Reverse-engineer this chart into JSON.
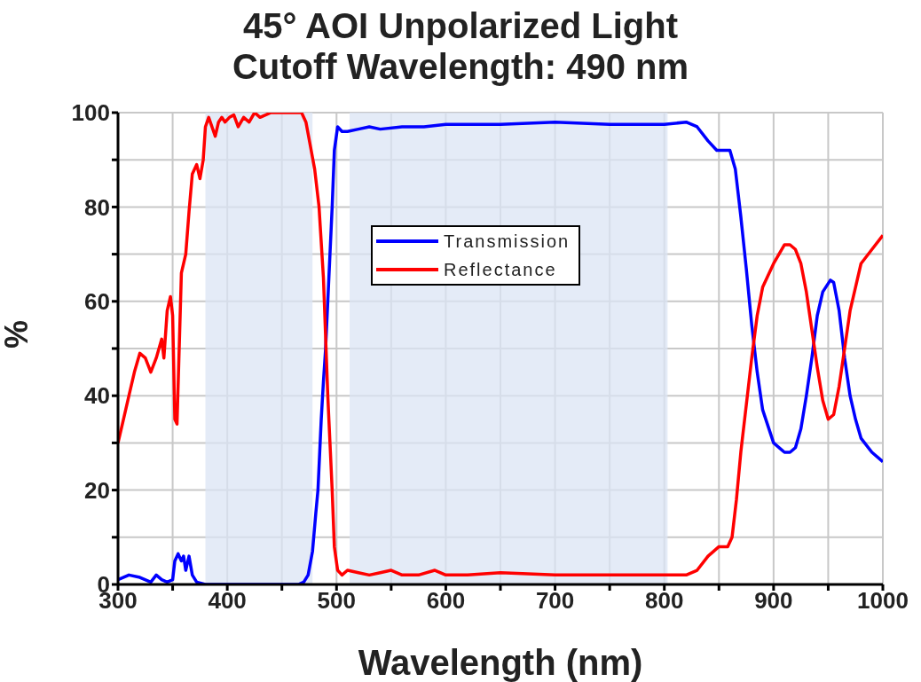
{
  "chart_data": {
    "type": "line",
    "title": "45° AOI Unpolarized Light",
    "subtitle": "Cutoff Wavelength: 490 nm",
    "xlabel": "Wavelength (nm)",
    "ylabel": "%",
    "xlim": [
      300,
      1000
    ],
    "xticks": [
      300,
      {
        "value": 350,
        "label": null
      },
      400,
      {
        "value": 450,
        "label": null
      },
      500,
      {
        "value": 550,
        "label": null
      },
      600,
      {
        "value": 650,
        "label": null
      },
      700,
      {
        "value": 750,
        "label": null
      },
      800,
      {
        "value": 850,
        "label": null
      },
      900,
      {
        "value": 950,
        "label": null
      },
      1000
    ],
    "ylim": [
      0,
      100
    ],
    "yticks": [
      0,
      {
        "value": 10,
        "label": null
      },
      20,
      {
        "value": 30,
        "label": null
      },
      40,
      {
        "value": 50,
        "label": null
      },
      60,
      {
        "value": 70,
        "label": null
      },
      80,
      {
        "value": 90,
        "label": null
      },
      100
    ],
    "grid": true,
    "legend": "top",
    "line_style": "solid",
    "marker": "none",
    "bands": [
      {
        "axis": "x",
        "from": 380,
        "to": 478,
        "color": "#dbe4f4"
      },
      {
        "axis": "x",
        "from": 512,
        "to": 803,
        "color": "#dbe4f4"
      }
    ],
    "series": [
      {
        "name": "Transmission",
        "color": "#0000ff",
        "x": [
          300,
          310,
          320,
          330,
          335,
          340,
          345,
          350,
          352,
          355,
          358,
          360,
          362,
          365,
          368,
          372,
          380,
          400,
          450,
          465,
          470,
          474,
          478,
          481,
          483,
          486,
          488,
          490,
          493,
          496,
          498,
          501,
          505,
          510,
          520,
          530,
          540,
          560,
          580,
          600,
          650,
          700,
          750,
          800,
          820,
          830,
          840,
          848,
          860,
          865,
          870,
          875,
          880,
          885,
          890,
          900,
          910,
          915,
          920,
          925,
          930,
          935,
          940,
          945,
          952,
          955,
          960,
          965,
          970,
          975,
          980,
          990,
          1000
        ],
        "values": [
          1,
          2,
          1.5,
          0.5,
          2,
          1,
          0.5,
          1,
          5,
          6.5,
          5,
          6,
          3,
          6,
          2,
          0.5,
          0,
          0,
          0,
          0,
          0.5,
          2,
          7,
          15,
          20,
          35,
          43,
          50,
          65,
          80,
          92,
          97,
          96,
          96,
          96.5,
          97,
          96.5,
          97,
          97,
          97.5,
          97.5,
          98,
          97.5,
          97.5,
          98,
          97,
          94,
          92,
          92,
          88,
          78,
          67,
          55,
          45,
          37,
          30,
          28,
          28,
          29,
          33,
          40,
          48,
          57,
          62,
          64.5,
          64,
          58,
          48,
          40,
          35,
          31,
          28,
          26
        ]
      },
      {
        "name": "Reflectance",
        "color": "#ff0000",
        "x": [
          300,
          305,
          310,
          315,
          320,
          325,
          330,
          335,
          340,
          342,
          345,
          348,
          350,
          352,
          354,
          356,
          358,
          362,
          365,
          368,
          372,
          375,
          378,
          380,
          383,
          386,
          389,
          392,
          395,
          398,
          402,
          406,
          410,
          415,
          420,
          425,
          430,
          440,
          450,
          460,
          468,
          472,
          476,
          480,
          484,
          488,
          492,
          494,
          496,
          498,
          501,
          505,
          510,
          520,
          530,
          540,
          550,
          560,
          575,
          590,
          600,
          620,
          650,
          700,
          750,
          800,
          820,
          830,
          840,
          850,
          858,
          862,
          866,
          870,
          875,
          880,
          885,
          890,
          900,
          910,
          915,
          920,
          925,
          930,
          935,
          940,
          945,
          950,
          955,
          960,
          965,
          970,
          975,
          980,
          990,
          1000
        ],
        "values": [
          30,
          35,
          40,
          45,
          49,
          48,
          45,
          48,
          52,
          48,
          58,
          61,
          57,
          35,
          34,
          50,
          66,
          70,
          79,
          87,
          89,
          86,
          90,
          97,
          99,
          97,
          95,
          98,
          99,
          98,
          99,
          99.5,
          97,
          99,
          98,
          100,
          99,
          100,
          100,
          100,
          100,
          98,
          93,
          88,
          80,
          65,
          40,
          30,
          20,
          8,
          3,
          2,
          3,
          2.5,
          2,
          2.5,
          3,
          2,
          2,
          3,
          2,
          2,
          2.5,
          2,
          2,
          2,
          2,
          3,
          6,
          8,
          8,
          10,
          18,
          28,
          38,
          48,
          57,
          63,
          68,
          72,
          72,
          71,
          68,
          62,
          54,
          46,
          39,
          35,
          36,
          42,
          50,
          58,
          63,
          68,
          71,
          74
        ]
      }
    ]
  }
}
